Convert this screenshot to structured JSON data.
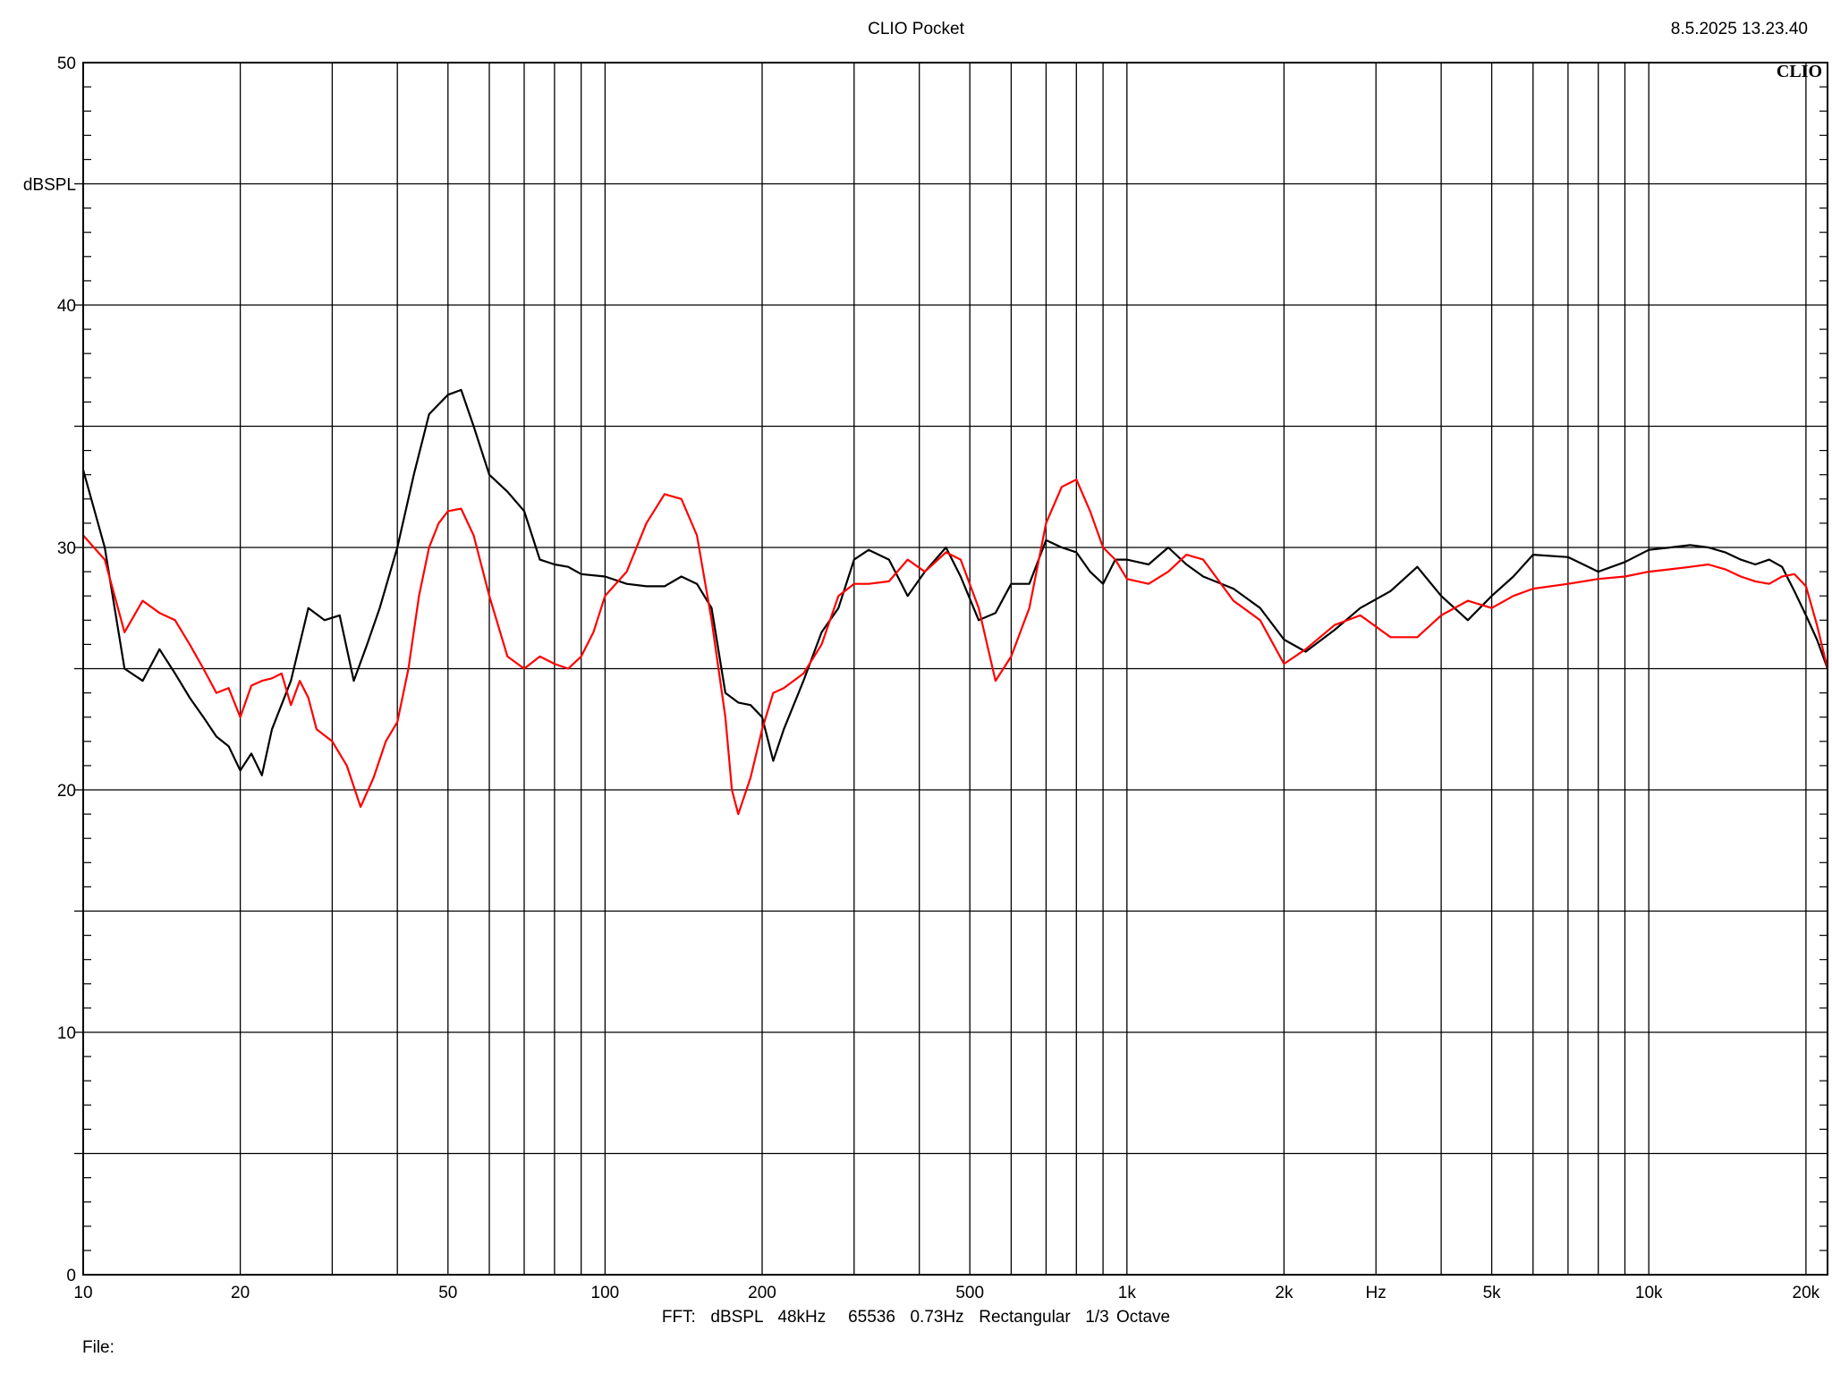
{
  "header": {
    "title": "CLIO Pocket",
    "timestamp": "8.5.2025 13.23.40"
  },
  "footer": {
    "settings": "FFT:  dBSPL  48kHz   65536  0.73Hz  Rectangular  1/3 Octave",
    "file_label": "File:"
  },
  "colors": {
    "background": "#ffffff",
    "grid": "#000000",
    "series_black": "#000000",
    "series_red": "#ff0000"
  },
  "chart_data": {
    "type": "line",
    "title": "CLIO Pocket",
    "brand": "CLIO",
    "xlabel": "Hz",
    "ylabel": "dBSPL",
    "xscale": "log",
    "xlim": [
      10,
      22000
    ],
    "ylim": [
      0,
      50
    ],
    "grid": true,
    "x_ticks": [
      {
        "value": 10,
        "label": "10"
      },
      {
        "value": 20,
        "label": "20"
      },
      {
        "value": 50,
        "label": "50"
      },
      {
        "value": 100,
        "label": "100"
      },
      {
        "value": 200,
        "label": "200"
      },
      {
        "value": 500,
        "label": "500"
      },
      {
        "value": 1000,
        "label": "1k"
      },
      {
        "value": 2000,
        "label": "2k"
      },
      {
        "value": 5000,
        "label": "5k"
      },
      {
        "value": 10000,
        "label": "10k"
      },
      {
        "value": 20000,
        "label": "20k"
      }
    ],
    "y_ticks": [
      {
        "value": 0,
        "label": "0"
      },
      {
        "value": 10,
        "label": "10"
      },
      {
        "value": 20,
        "label": "20"
      },
      {
        "value": 30,
        "label": "30"
      },
      {
        "value": 40,
        "label": "40"
      },
      {
        "value": 50,
        "label": "50"
      }
    ],
    "series": [
      {
        "color": "#000000",
        "x": [
          10,
          11,
          12,
          13,
          14,
          15,
          16,
          17,
          18,
          19,
          20,
          21,
          22,
          23,
          25,
          27,
          29,
          31,
          33,
          35,
          37,
          40,
          43,
          46,
          50,
          53,
          56,
          60,
          65,
          70,
          75,
          80,
          85,
          90,
          100,
          110,
          120,
          130,
          140,
          150,
          160,
          170,
          180,
          190,
          200,
          210,
          220,
          240,
          260,
          280,
          300,
          320,
          350,
          380,
          410,
          450,
          480,
          520,
          560,
          600,
          650,
          700,
          750,
          800,
          850,
          900,
          950,
          1000,
          1100,
          1200,
          1300,
          1400,
          1600,
          1800,
          2000,
          2200,
          2500,
          2800,
          3200,
          3600,
          4000,
          4500,
          5000,
          5500,
          6000,
          7000,
          8000,
          9000,
          10000,
          11000,
          12000,
          13000,
          14000,
          15000,
          16000,
          17000,
          18000,
          19000,
          20000,
          21000,
          22000
        ],
        "y": [
          33.2,
          30.0,
          25.0,
          24.5,
          25.8,
          24.8,
          23.8,
          23.0,
          22.2,
          21.8,
          20.8,
          21.5,
          20.6,
          22.5,
          24.5,
          27.5,
          27.0,
          27.2,
          24.5,
          26.0,
          27.5,
          30.0,
          33.0,
          35.5,
          36.3,
          36.5,
          35.0,
          33.0,
          32.3,
          31.5,
          29.5,
          29.3,
          29.2,
          28.9,
          28.8,
          28.5,
          28.4,
          28.4,
          28.8,
          28.5,
          27.5,
          24.0,
          23.6,
          23.5,
          23.0,
          21.2,
          22.5,
          24.5,
          26.5,
          27.5,
          29.5,
          29.9,
          29.5,
          28.0,
          29.0,
          30.0,
          28.8,
          27.0,
          27.3,
          28.5,
          28.5,
          30.3,
          30.0,
          29.8,
          29.0,
          28.5,
          29.5,
          29.5,
          29.3,
          30.0,
          29.3,
          28.8,
          28.3,
          27.5,
          26.2,
          25.7,
          26.6,
          27.5,
          28.2,
          29.2,
          28.0,
          27.0,
          28.0,
          28.8,
          29.7,
          29.6,
          29.0,
          29.4,
          29.9,
          30.0,
          30.1,
          30.0,
          29.8,
          29.5,
          29.3,
          29.5,
          29.2,
          28.2,
          27.2,
          26.2,
          25.0
        ]
      },
      {
        "color": "#ff0000",
        "x": [
          10,
          11,
          12,
          13,
          14,
          15,
          16,
          17,
          18,
          19,
          20,
          21,
          22,
          23,
          24,
          25,
          26,
          27,
          28,
          30,
          32,
          34,
          36,
          38,
          40,
          42,
          44,
          46,
          48,
          50,
          53,
          56,
          60,
          65,
          70,
          75,
          80,
          85,
          90,
          95,
          100,
          110,
          120,
          130,
          140,
          150,
          160,
          170,
          175,
          180,
          190,
          200,
          210,
          220,
          240,
          260,
          280,
          300,
          320,
          350,
          380,
          410,
          450,
          480,
          520,
          560,
          600,
          650,
          700,
          750,
          800,
          850,
          900,
          950,
          1000,
          1100,
          1200,
          1300,
          1400,
          1600,
          1800,
          2000,
          2200,
          2500,
          2800,
          3200,
          3600,
          4000,
          4500,
          5000,
          5500,
          6000,
          7000,
          8000,
          9000,
          10000,
          11000,
          12000,
          13000,
          14000,
          15000,
          16000,
          17000,
          18000,
          19000,
          20000,
          21000,
          22000
        ],
        "y": [
          30.5,
          29.5,
          26.5,
          27.8,
          27.3,
          27.0,
          26.0,
          25.0,
          24.0,
          24.2,
          23.0,
          24.3,
          24.5,
          24.6,
          24.8,
          23.5,
          24.5,
          23.8,
          22.5,
          22.0,
          21.0,
          19.3,
          20.5,
          22.0,
          22.8,
          25.0,
          28.0,
          30.0,
          31.0,
          31.5,
          31.6,
          30.5,
          28.0,
          25.5,
          25.0,
          25.5,
          25.2,
          25.0,
          25.5,
          26.5,
          28.0,
          29.0,
          31.0,
          32.2,
          32.0,
          30.5,
          27.0,
          23.0,
          20.0,
          19.0,
          20.5,
          22.5,
          24.0,
          24.2,
          24.8,
          26.0,
          28.0,
          28.5,
          28.5,
          28.6,
          29.5,
          29.0,
          29.8,
          29.5,
          27.5,
          24.5,
          25.5,
          27.5,
          31.0,
          32.5,
          32.8,
          31.5,
          30.0,
          29.5,
          28.7,
          28.5,
          29.0,
          29.7,
          29.5,
          27.8,
          27.0,
          25.2,
          25.8,
          26.8,
          27.2,
          26.3,
          26.3,
          27.2,
          27.8,
          27.5,
          28.0,
          28.3,
          28.5,
          28.7,
          28.8,
          29.0,
          29.1,
          29.2,
          29.3,
          29.1,
          28.8,
          28.6,
          28.5,
          28.8,
          28.9,
          28.4,
          26.8,
          25.0
        ]
      }
    ]
  }
}
